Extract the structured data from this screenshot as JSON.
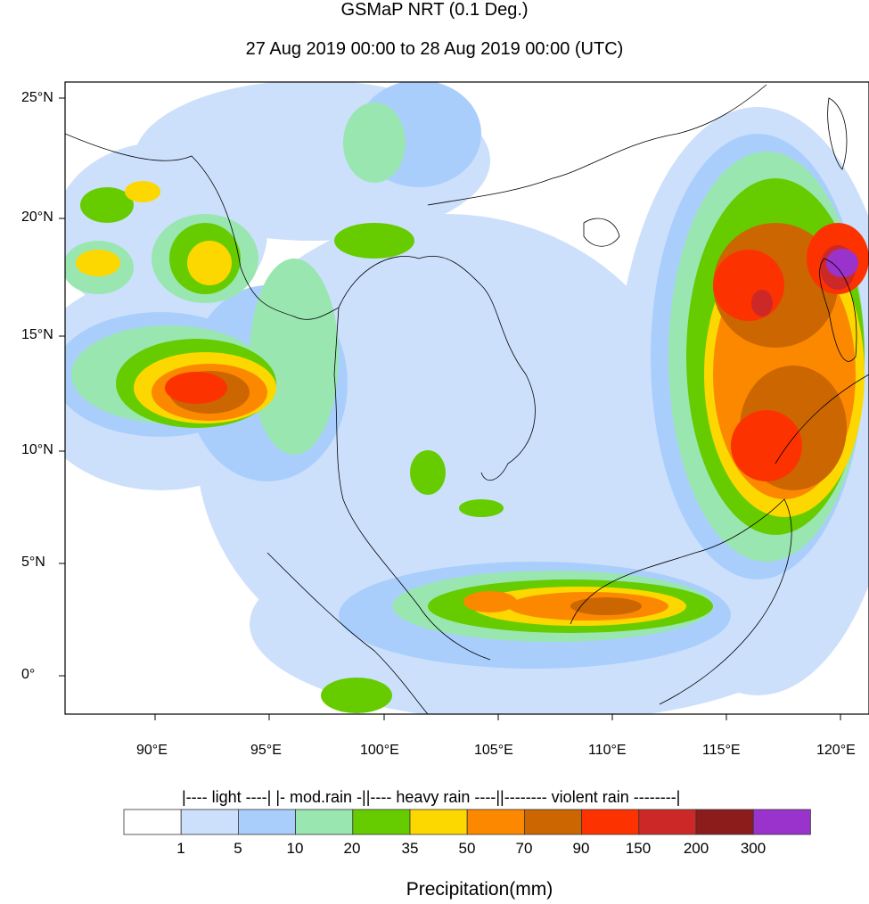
{
  "title": "GSMaP NRT (0.1 Deg.)",
  "subtitle": "27 Aug 2019 00:00 to 28 Aug 2019 00:00 (UTC)",
  "map": {
    "lon_labels": [
      "90°E",
      "95°E",
      "100°E",
      "105°E",
      "110°E",
      "115°E",
      "120°E"
    ],
    "lat_labels": [
      "25°N",
      "20°N",
      "15°N",
      "10°N",
      "5°N",
      "0°"
    ],
    "lon_range": [
      86,
      122
    ],
    "lat_range": [
      -1.7,
      25.7
    ]
  },
  "colorbar": {
    "category_text": "|---- light ----| |- mod.rain -||---- heavy rain ----||-------- violent rain --------|",
    "tick_labels": [
      "1",
      "5",
      "10",
      "20",
      "35",
      "50",
      "70",
      "90",
      "150",
      "200",
      "300"
    ],
    "colors": [
      "#ffffff",
      "#cce0fc",
      "#aacefc",
      "#99e6b0",
      "#66cc00",
      "#fcd800",
      "#fc8800",
      "#cc6600",
      "#fc3300",
      "#cc2828",
      "#8c1c1c",
      "#9933cc"
    ],
    "title": "Precipitation(mm)"
  }
}
